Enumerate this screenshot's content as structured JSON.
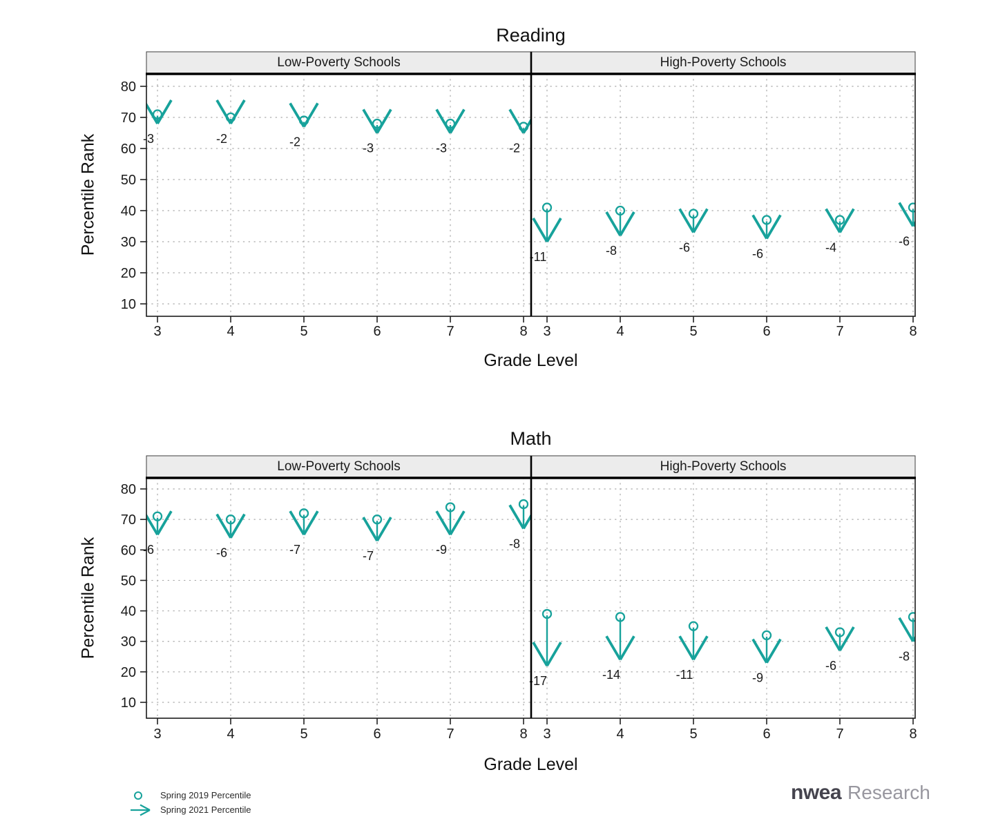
{
  "colors": {
    "accent_teal": "#17a29b",
    "grid": "#a8a8a8",
    "header_bg": "#ececec",
    "frame": "#1a1a1a",
    "text": "#1a1a1a",
    "logo_brand": "#45444e",
    "logo_suffix": "#98979f"
  },
  "chart_data": [
    {
      "type": "scatter",
      "title": "Reading",
      "xlabel": "Grade Level",
      "ylabel": "Percentile Rank",
      "yticks": [
        10,
        20,
        30,
        40,
        50,
        60,
        70,
        80
      ],
      "ylim": [
        5,
        84
      ],
      "categories": [
        3,
        4,
        5,
        6,
        7,
        8
      ],
      "grid": "dotted",
      "panels": [
        {
          "label": "Low-Poverty Schools",
          "series": [
            {
              "name": "Spring 2019 Percentile",
              "values": [
                71,
                70,
                69,
                68,
                68,
                67
              ]
            },
            {
              "name": "Spring 2021 Percentile",
              "values": [
                68,
                68,
                67,
                65,
                65,
                65
              ]
            }
          ],
          "change_labels": [
            "-3",
            "-2",
            "-2",
            "-3",
            "-3",
            "-2"
          ]
        },
        {
          "label": "High-Poverty Schools",
          "series": [
            {
              "name": "Spring 2019 Percentile",
              "values": [
                41,
                40,
                39,
                37,
                37,
                41
              ]
            },
            {
              "name": "Spring 2021 Percentile",
              "values": [
                30,
                32,
                33,
                31,
                33,
                35
              ]
            }
          ],
          "change_labels": [
            "-11",
            "-8",
            "-6",
            "-6",
            "-4",
            "-6"
          ]
        }
      ]
    },
    {
      "type": "scatter",
      "title": "Math",
      "xlabel": "Grade Level",
      "ylabel": "Percentile Rank",
      "yticks": [
        10,
        20,
        30,
        40,
        50,
        60,
        70,
        80
      ],
      "ylim": [
        5,
        84
      ],
      "categories": [
        3,
        4,
        5,
        6,
        7,
        8
      ],
      "grid": "dotted",
      "panels": [
        {
          "label": "Low-Poverty Schools",
          "series": [
            {
              "name": "Spring 2019 Percentile",
              "values": [
                71,
                70,
                72,
                70,
                74,
                75
              ]
            },
            {
              "name": "Spring 2021 Percentile",
              "values": [
                65,
                64,
                65,
                63,
                65,
                67
              ]
            }
          ],
          "change_labels": [
            "-6",
            "-6",
            "-7",
            "-7",
            "-9",
            "-8"
          ]
        },
        {
          "label": "High-Poverty Schools",
          "series": [
            {
              "name": "Spring 2019 Percentile",
              "values": [
                39,
                38,
                35,
                32,
                33,
                38
              ]
            },
            {
              "name": "Spring 2021 Percentile",
              "values": [
                22,
                24,
                24,
                23,
                27,
                30
              ]
            }
          ],
          "change_labels": [
            "-17",
            "-14",
            "-11",
            "-9",
            "-6",
            "-8"
          ]
        }
      ]
    }
  ],
  "legend": {
    "items": [
      {
        "marker": "circle",
        "label": "Spring 2019 Percentile"
      },
      {
        "marker": "arrow",
        "label": "Spring 2021 Percentile"
      }
    ]
  },
  "logo": {
    "brand": "nwea",
    "suffix": "Research"
  }
}
